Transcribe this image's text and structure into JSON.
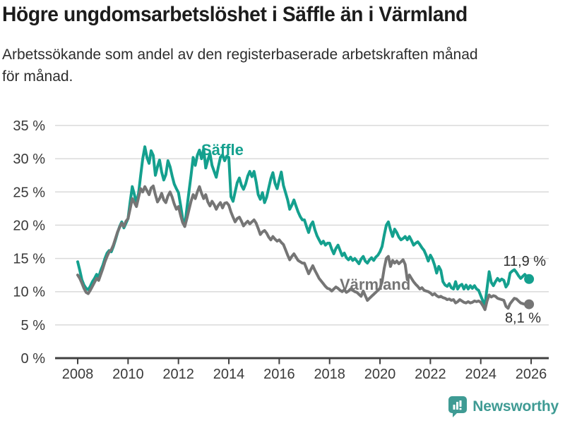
{
  "header": {
    "title": "Högre ungdomsarbetslöshet i Säffle än i Värmland",
    "subtitle_lines": [
      "Arbetssökande som andel av den registerbaserade arbetskraften månad",
      "för månad."
    ]
  },
  "chart_data": {
    "type": "line",
    "title": "Högre ungdomsarbetslöshet i Säffle än i Värmland",
    "subtitle": "Arbetssökande som andel av den registerbaserade arbetskraften månad för månad.",
    "xlabel": "",
    "ylabel": "",
    "grid": true,
    "legend": "inline-labels",
    "y_axis": {
      "ticks": [
        0,
        5,
        10,
        15,
        20,
        25,
        30,
        35
      ],
      "suffix": " %",
      "min": 0,
      "max": 35
    },
    "x_axis": {
      "start_year": 2008,
      "tick_years": [
        2008,
        2010,
        2012,
        2014,
        2016,
        2018,
        2020,
        2022,
        2024,
        2026
      ],
      "frequency": "monthly",
      "start": "2008-01",
      "end": "2025-12"
    },
    "style": {
      "grid_color": "#dadada",
      "axis_color": "#404040",
      "tick_label_color": "#3a3a3a",
      "value_label_color": "#2e2e2e"
    },
    "series": [
      {
        "id": "saffle",
        "name": "Säffle",
        "color": "#14a08e",
        "end_label": "11,9 %",
        "end_value": 11.9,
        "values": [
          14.5,
          13.2,
          11.8,
          11.0,
          10.5,
          10.3,
          10.8,
          11.5,
          12.0,
          12.6,
          12.2,
          13.2,
          14.0,
          15.0,
          15.8,
          16.2,
          16.0,
          16.8,
          17.8,
          18.9,
          19.8,
          20.5,
          19.6,
          20.3,
          21.0,
          23.5,
          25.8,
          24.6,
          23.3,
          24.8,
          27.5,
          30.0,
          31.8,
          30.2,
          29.3,
          31.2,
          30.5,
          27.5,
          28.8,
          29.8,
          28.0,
          26.8,
          27.6,
          29.7,
          28.8,
          27.4,
          26.2,
          25.5,
          24.9,
          23.0,
          21.0,
          19.9,
          22.5,
          25.0,
          27.5,
          30.2,
          29.0,
          30.5,
          31.3,
          30.0,
          31.5,
          28.6,
          29.8,
          30.8,
          29.0,
          28.1,
          27.2,
          28.8,
          30.2,
          30.6,
          29.7,
          30.4,
          30.2,
          24.3,
          23.6,
          25.0,
          26.4,
          27.1,
          26.0,
          25.4,
          26.2,
          27.4,
          28.1,
          27.3,
          28.1,
          26.5,
          24.6,
          23.9,
          24.9,
          23.4,
          24.2,
          25.6,
          27.0,
          27.9,
          26.3,
          25.5,
          26.8,
          28.0,
          26.0,
          24.9,
          23.8,
          22.4,
          23.0,
          23.8,
          22.9,
          22.0,
          21.3,
          20.8,
          20.8,
          19.8,
          18.9,
          20.0,
          20.5,
          19.3,
          18.4,
          17.8,
          17.2,
          17.6,
          17.0,
          17.3,
          17.3,
          16.4,
          15.7,
          16.5,
          17.0,
          16.2,
          15.4,
          15.8,
          15.1,
          14.8,
          15.2,
          14.7,
          15.0,
          14.6,
          14.2,
          14.9,
          15.3,
          14.6,
          14.3,
          14.8,
          15.1,
          14.7,
          15.2,
          15.5,
          16.0,
          16.8,
          18.5,
          20.0,
          20.5,
          19.3,
          18.3,
          19.4,
          18.9,
          18.2,
          17.8,
          18.0,
          18.3,
          17.8,
          18.3,
          17.7,
          17.0,
          17.3,
          17.5,
          17.1,
          16.6,
          16.2,
          15.5,
          14.6,
          15.5,
          14.9,
          14.0,
          12.8,
          13.8,
          13.2,
          11.5,
          11.0,
          10.8,
          11.2,
          10.6,
          10.4,
          11.5,
          10.4,
          10.9,
          11.1,
          10.4,
          11.0,
          10.4,
          10.9,
          10.5,
          10.9,
          10.4,
          10.2,
          9.4,
          8.6,
          8.1,
          10.5,
          13.0,
          11.4,
          10.9,
          11.5,
          12.0,
          11.6,
          11.9,
          11.7,
          10.7,
          11.2,
          12.8,
          13.1,
          13.3,
          12.9,
          12.4,
          12.0,
          12.3,
          12.6,
          12.2,
          11.9
        ]
      },
      {
        "id": "varmland",
        "name": "Värmland",
        "color": "#757575",
        "end_label": "8,1 %",
        "end_value": 8.1,
        "values": [
          12.5,
          12.0,
          11.3,
          10.5,
          9.9,
          9.7,
          10.2,
          10.8,
          11.4,
          12.0,
          11.7,
          12.6,
          13.5,
          14.5,
          15.3,
          16.0,
          16.3,
          17.0,
          18.0,
          19.0,
          19.7,
          20.3,
          19.8,
          20.6,
          21.0,
          22.5,
          24.0,
          23.4,
          22.8,
          24.2,
          25.5,
          25.0,
          25.8,
          25.2,
          24.6,
          25.6,
          25.9,
          24.6,
          23.5,
          24.0,
          24.8,
          23.8,
          23.4,
          24.4,
          25.0,
          24.2,
          23.2,
          22.4,
          22.8,
          21.5,
          20.4,
          19.8,
          21.0,
          22.3,
          23.6,
          24.6,
          24.0,
          25.0,
          25.8,
          24.8,
          24.0,
          24.6,
          23.5,
          22.9,
          23.6,
          23.1,
          22.4,
          23.0,
          23.4,
          22.6,
          23.3,
          23.4,
          23.0,
          22.0,
          21.2,
          20.5,
          21.0,
          21.2,
          20.6,
          19.9,
          20.3,
          20.6,
          20.2,
          20.5,
          20.8,
          20.3,
          19.5,
          18.6,
          19.0,
          19.2,
          18.8,
          18.2,
          17.8,
          18.3,
          17.9,
          17.6,
          17.8,
          17.4,
          17.1,
          16.3,
          15.5,
          14.8,
          15.3,
          15.7,
          15.2,
          14.7,
          14.5,
          14.3,
          14.3,
          13.5,
          12.7,
          13.3,
          13.9,
          13.2,
          12.6,
          12.0,
          11.6,
          11.2,
          10.8,
          10.5,
          10.4,
          10.1,
          10.4,
          10.7,
          10.5,
          10.2,
          10.0,
          10.3,
          9.9,
          10.1,
          10.4,
          10.2,
          10.0,
          9.9,
          9.6,
          9.3,
          10.1,
          9.4,
          8.7,
          9.0,
          9.3,
          9.6,
          9.9,
          10.2,
          10.5,
          11.5,
          13.5,
          15.0,
          15.3,
          13.8,
          14.7,
          14.3,
          14.6,
          14.2,
          14.5,
          14.8,
          14.1,
          11.8,
          12.5,
          12.0,
          11.5,
          11.1,
          10.8,
          10.4,
          10.6,
          10.2,
          10.1,
          10.0,
          9.8,
          9.5,
          9.7,
          9.4,
          9.2,
          9.3,
          9.1,
          9.0,
          8.8,
          8.9,
          8.7,
          8.8,
          8.3,
          8.5,
          8.8,
          8.6,
          8.4,
          8.3,
          8.5,
          8.3,
          8.4,
          8.6,
          8.5,
          8.6,
          8.4,
          7.9,
          7.3,
          8.6,
          9.5,
          9.2,
          9.4,
          9.3,
          9.0,
          8.9,
          8.8,
          8.7,
          7.8,
          7.5,
          8.2,
          8.6,
          9.0,
          8.9,
          8.6,
          8.3,
          8.2,
          8.1,
          8.2,
          8.1
        ]
      }
    ]
  },
  "footer": {
    "brand": "Newsworthy",
    "brand_color": "#3f9b94"
  }
}
